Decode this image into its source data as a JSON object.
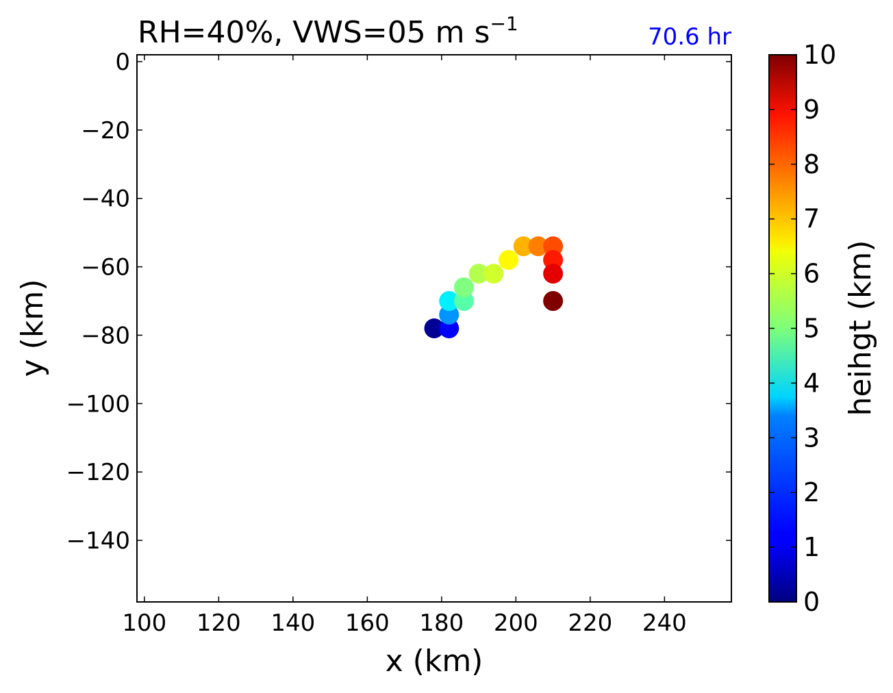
{
  "chart_data": {
    "type": "scatter",
    "title": "RH=40%, VWS=05 m s",
    "title_exponent": "−1",
    "time_label": "70.6 hr",
    "time_label_color": "#0000ff",
    "xlabel": "x (km)",
    "ylabel": "y (km)",
    "xlim": [
      98,
      258
    ],
    "ylim": [
      -158,
      2
    ],
    "xticks": [
      100,
      120,
      140,
      160,
      180,
      200,
      220,
      240
    ],
    "xtick_labels": [
      "100",
      "120",
      "140",
      "160",
      "180",
      "200",
      "220",
      "240"
    ],
    "yticks": [
      0,
      -20,
      -40,
      -60,
      -80,
      -100,
      -120,
      -140
    ],
    "ytick_labels": [
      "0",
      "−20",
      "−40",
      "−60",
      "−80",
      "−100",
      "−120",
      "−140"
    ],
    "grid": false,
    "colormap": "jet",
    "colorbar": {
      "label": "heihgt (km)",
      "range": [
        0,
        10
      ],
      "ticks": [
        0,
        1,
        2,
        3,
        4,
        5,
        6,
        7,
        8,
        9,
        10
      ],
      "tick_labels": [
        "0",
        "1",
        "2",
        "3",
        "4",
        "5",
        "6",
        "7",
        "8",
        "9",
        "10"
      ]
    },
    "points": [
      {
        "x": 178,
        "y": -78,
        "height": 0.2
      },
      {
        "x": 182,
        "y": -78,
        "height": 1.2
      },
      {
        "x": 182,
        "y": -74,
        "height": 2.7
      },
      {
        "x": 182,
        "y": -70,
        "height": 3.6
      },
      {
        "x": 186,
        "y": -70,
        "height": 4.6
      },
      {
        "x": 186,
        "y": -66,
        "height": 5.0
      },
      {
        "x": 190,
        "y": -62,
        "height": 5.5
      },
      {
        "x": 194,
        "y": -62,
        "height": 5.8
      },
      {
        "x": 198,
        "y": -58,
        "height": 6.3
      },
      {
        "x": 202,
        "y": -54,
        "height": 7.0
      },
      {
        "x": 206,
        "y": -54,
        "height": 7.5
      },
      {
        "x": 210,
        "y": -54,
        "height": 8.0
      },
      {
        "x": 210,
        "y": -58,
        "height": 8.5
      },
      {
        "x": 210,
        "y": -62,
        "height": 9.0
      },
      {
        "x": 210,
        "y": -70,
        "height": 10.0
      }
    ]
  }
}
